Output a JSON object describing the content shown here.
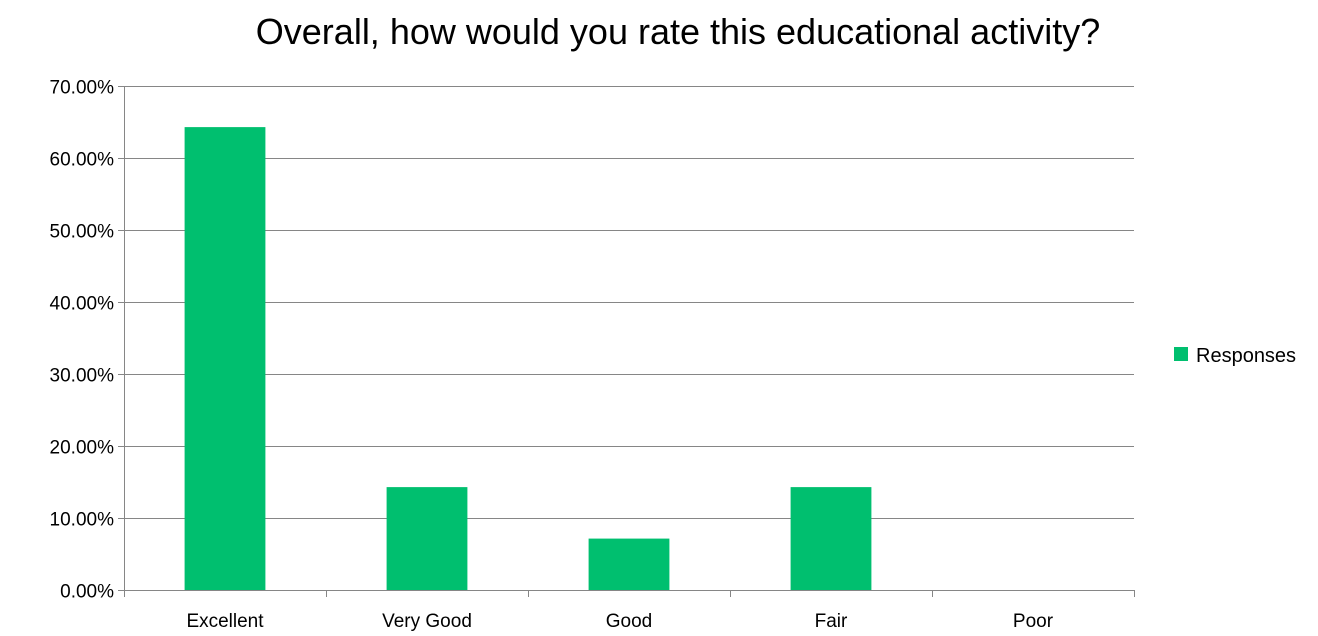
{
  "chart_data": {
    "type": "bar",
    "title": "Overall, how would you rate this educational activity?",
    "xlabel": "",
    "ylabel": "",
    "categories": [
      "Excellent",
      "Very Good",
      "Good",
      "Fair",
      "Poor"
    ],
    "series": [
      {
        "name": "Responses",
        "color": "#00BF6F",
        "values": [
          0.6429,
          0.1429,
          0.0714,
          0.1429,
          0.0
        ]
      }
    ],
    "ylim": [
      0,
      0.7
    ],
    "yticks": [
      0,
      0.1,
      0.2,
      0.3,
      0.4,
      0.5,
      0.6,
      0.7
    ],
    "ytick_labels": [
      "0.00%",
      "10.00%",
      "20.00%",
      "30.00%",
      "40.00%",
      "50.00%",
      "60.00%",
      "70.00%"
    ],
    "grid": true,
    "legend_position": "right",
    "axis_color": "#868686",
    "grid_color": "#868686"
  }
}
